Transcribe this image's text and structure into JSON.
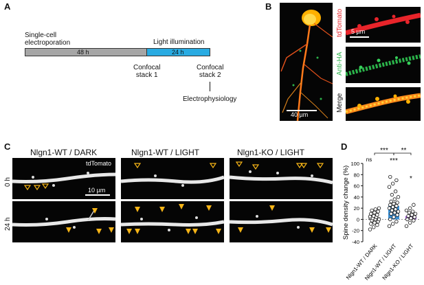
{
  "panelA": {
    "label": "A",
    "step1": "Single-cell\nelectroporation",
    "step2": "Light illumination",
    "bar1": "48 h",
    "bar2": "24 h",
    "stack1": "Confocal\nstack 1",
    "stack2": "Confocal\nstack 2",
    "ephys": "Electrophysiology",
    "colors": {
      "gray": "#a6a6a6",
      "blue": "#29abe2"
    }
  },
  "panelB": {
    "label": "B",
    "ch1": "tdTomato",
    "ch2": "Anti-HA",
    "ch3": "Merge",
    "scale_small": "5 µm",
    "scale_large": "40 µm",
    "colors": {
      "red": "#e8242a",
      "green": "#2bb34a"
    }
  },
  "panelC": {
    "label": "C",
    "cond1": "Nlgn1-WT / DARK",
    "cond2": "Nlgn1-WT / LIGHT",
    "cond3": "Nlgn1-KO / LIGHT",
    "row1": "0 h",
    "row2": "24 h",
    "channel": "tdTomato",
    "scale": "10 µm",
    "arrow_color": "#f5b417"
  },
  "panelD": {
    "label": "D",
    "sig_top1": "***",
    "sig_top2": "**",
    "sig_ns": "ns",
    "sig_g2": "***",
    "sig_g3": "*",
    "chart_data": {
      "type": "scatter",
      "ylabel": "Spine density change (%)",
      "ylim": [
        -40,
        100
      ],
      "yticks": [
        -40,
        -20,
        0,
        20,
        40,
        60,
        80,
        100
      ],
      "categories": [
        "Nlgn1-WT / DARK",
        "Nlgn1-WT / LIGHT",
        "Nlgn1-KO / LIGHT"
      ],
      "bars": [
        {
          "mean": 3,
          "sem": 4,
          "color": "#ffffff"
        },
        {
          "mean": 24,
          "sem": 6,
          "color": "#3a8fd4"
        },
        {
          "mean": 6,
          "sem": 4,
          "color": "#9b59d0"
        }
      ],
      "points": [
        [
          -18,
          -14,
          -10,
          -8,
          -6,
          -4,
          -2,
          0,
          0,
          2,
          4,
          5,
          6,
          8,
          10,
          12,
          14,
          16,
          18,
          20
        ],
        [
          -12,
          -8,
          -4,
          0,
          4,
          8,
          10,
          12,
          14,
          16,
          18,
          20,
          22,
          24,
          26,
          28,
          30,
          32,
          36,
          40,
          44,
          50,
          58,
          64,
          70,
          76
        ],
        [
          -12,
          -6,
          -2,
          0,
          2,
          4,
          6,
          8,
          10,
          12,
          14,
          16,
          20,
          26
        ]
      ]
    }
  }
}
